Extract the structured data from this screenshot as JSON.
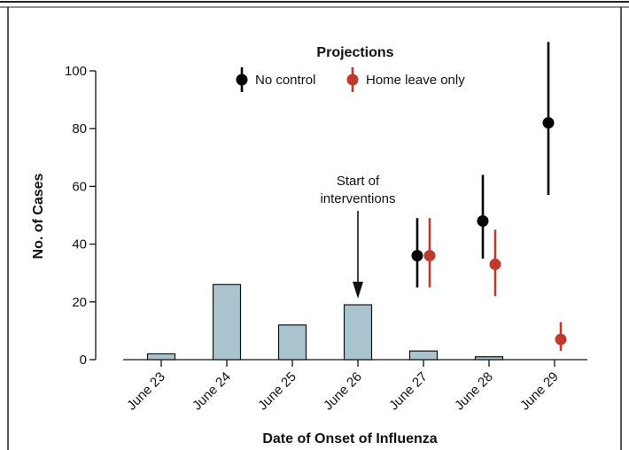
{
  "chart_data": {
    "type": "bar",
    "categories": [
      "June 23",
      "June 24",
      "June 25",
      "June 26",
      "June 27",
      "June 28",
      "June 29"
    ],
    "values": [
      2,
      26,
      12,
      19,
      3,
      1,
      0
    ],
    "xlabel": "Date of Onset of Influenza",
    "ylabel": "No. of Cases",
    "ylim": [
      0,
      100
    ],
    "yticks": [
      0,
      20,
      40,
      60,
      80,
      100
    ],
    "grid": false,
    "legend": {
      "title": "Projections",
      "placement": "top-center",
      "entries": [
        "No control",
        "Home leave only"
      ]
    },
    "projections": [
      {
        "name": "No control",
        "color": "#000000",
        "points": [
          {
            "x": "June 27",
            "y": 36,
            "low": 25,
            "high": 49
          },
          {
            "x": "June 28",
            "y": 48,
            "low": 35,
            "high": 64
          },
          {
            "x": "June 29",
            "y": 82,
            "low": 57,
            "high": 110
          }
        ]
      },
      {
        "name": "Home leave only",
        "color": "#c0392b",
        "points": [
          {
            "x": "June 27",
            "y": 36,
            "low": 25,
            "high": 49
          },
          {
            "x": "June 28",
            "y": 33,
            "low": 22,
            "high": 45
          },
          {
            "x": "June 29",
            "y": 7,
            "low": 3,
            "high": 13
          }
        ]
      }
    ],
    "annotation": {
      "lines": [
        "Start of",
        "interventions"
      ],
      "target": "June 26"
    },
    "bar_color": "#a9c4cf"
  }
}
